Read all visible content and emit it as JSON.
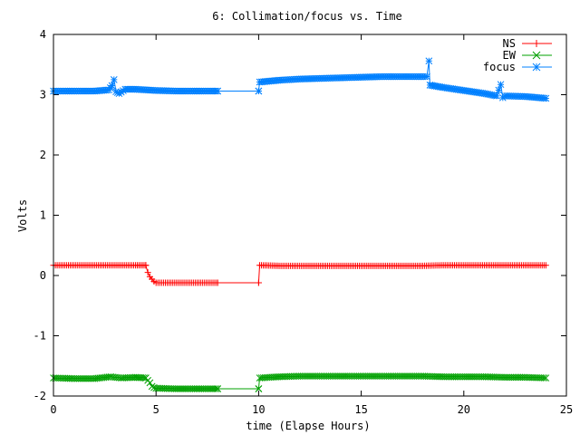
{
  "chart_data": {
    "type": "line",
    "title": "6: Collimation/focus vs. Time",
    "xlabel": "time (Elapse Hours)",
    "ylabel": "Volts",
    "xlim": [
      0,
      25
    ],
    "ylim": [
      -2,
      4
    ],
    "x_ticks": [
      0,
      5,
      10,
      15,
      20,
      25
    ],
    "y_ticks": [
      -2,
      -1,
      0,
      1,
      2,
      3,
      4
    ],
    "x_tick_labels": [
      "0",
      "5",
      "10",
      "15",
      "20",
      "25"
    ],
    "y_tick_labels": [
      "-2",
      "-1",
      "0",
      "1",
      "2",
      "3",
      "4"
    ],
    "legend_position": "top-right",
    "series": [
      {
        "name": "NS",
        "color": "#ff0000",
        "marker": "plus",
        "segments": [
          {
            "x": [
              0.0,
              1.0,
              2.0,
              3.0,
              4.0,
              4.5
            ],
            "y": [
              0.17,
              0.17,
              0.17,
              0.17,
              0.17,
              0.17
            ]
          },
          {
            "x": [
              4.5,
              4.6,
              4.7,
              4.8,
              4.9,
              5.0,
              6.0,
              7.0,
              8.0
            ],
            "y": [
              0.17,
              0.05,
              -0.02,
              -0.06,
              -0.1,
              -0.12,
              -0.12,
              -0.12,
              -0.12
            ]
          },
          {
            "x": [
              8.0,
              10.0
            ],
            "y": [
              -0.12,
              -0.12
            ]
          },
          {
            "x": [
              10.0,
              10.05,
              11.0,
              12.0,
              13.0,
              14.0,
              15.0,
              16.0,
              17.0,
              18.0,
              19.0,
              20.0,
              21.0,
              22.0,
              23.0,
              24.0
            ],
            "y": [
              -0.12,
              0.17,
              0.16,
              0.16,
              0.16,
              0.16,
              0.16,
              0.16,
              0.16,
              0.16,
              0.17,
              0.17,
              0.17,
              0.17,
              0.17,
              0.17
            ]
          }
        ]
      },
      {
        "name": "EW",
        "color": "#00a000",
        "marker": "x",
        "segments": [
          {
            "x": [
              0.0,
              1.0,
              2.0,
              2.8,
              3.0,
              3.3,
              4.0,
              4.5
            ],
            "y": [
              -1.7,
              -1.71,
              -1.71,
              -1.68,
              -1.69,
              -1.7,
              -1.69,
              -1.7
            ]
          },
          {
            "x": [
              4.5,
              4.7,
              4.8,
              4.9,
              5.0,
              6.0,
              7.0,
              8.0
            ],
            "y": [
              -1.7,
              -1.78,
              -1.84,
              -1.86,
              -1.87,
              -1.88,
              -1.88,
              -1.88
            ]
          },
          {
            "x": [
              8.0,
              10.0
            ],
            "y": [
              -1.88,
              -1.88
            ]
          },
          {
            "x": [
              10.0,
              10.05,
              11.0,
              12.0,
              13.0,
              14.0,
              15.0,
              16.0,
              17.0,
              18.0,
              19.0,
              20.0,
              21.0,
              22.0,
              23.0,
              24.0
            ],
            "y": [
              -1.88,
              -1.7,
              -1.68,
              -1.67,
              -1.67,
              -1.67,
              -1.67,
              -1.67,
              -1.67,
              -1.67,
              -1.68,
              -1.68,
              -1.68,
              -1.69,
              -1.69,
              -1.7
            ]
          }
        ]
      },
      {
        "name": "focus",
        "color": "#0080ff",
        "marker": "star",
        "segments": [
          {
            "x": [
              0.0,
              1.0,
              2.0,
              2.7,
              2.85,
              2.95,
              3.05,
              3.2,
              3.5,
              4.0,
              5.0,
              6.0,
              7.0,
              8.0
            ],
            "y": [
              3.06,
              3.06,
              3.06,
              3.08,
              3.15,
              3.25,
              3.05,
              3.02,
              3.09,
              3.09,
              3.07,
              3.06,
              3.06,
              3.06
            ]
          },
          {
            "x": [
              8.0,
              10.0
            ],
            "y": [
              3.06,
              3.06
            ]
          },
          {
            "x": [
              10.0,
              10.05,
              11.0,
              12.0,
              13.0,
              14.0,
              15.0,
              16.0,
              17.0,
              18.0,
              18.2,
              18.3,
              18.35,
              18.5,
              19.0,
              20.0,
              21.0,
              21.6,
              21.8,
              21.9,
              22.0,
              23.0,
              24.0
            ],
            "y": [
              3.06,
              3.21,
              3.24,
              3.26,
              3.27,
              3.28,
              3.29,
              3.3,
              3.3,
              3.3,
              3.3,
              3.56,
              3.16,
              3.15,
              3.12,
              3.07,
              3.02,
              2.98,
              3.17,
              2.95,
              2.98,
              2.97,
              2.94
            ]
          }
        ]
      }
    ]
  }
}
